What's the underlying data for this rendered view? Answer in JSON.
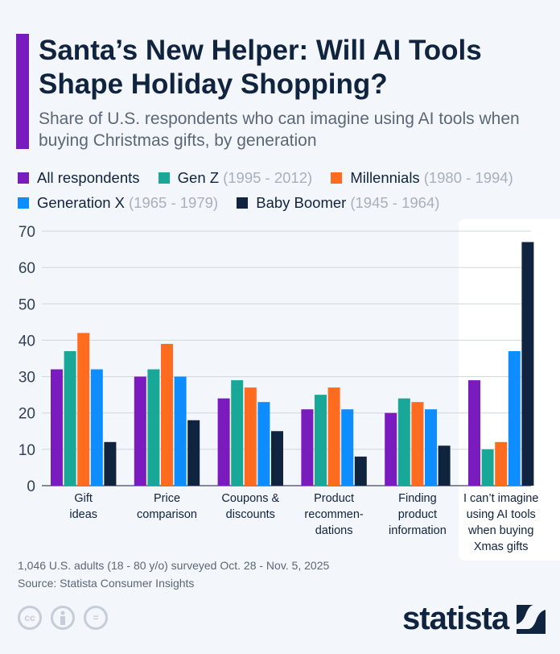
{
  "title": "Santa’s New Helper: Will AI Tools Shape Holiday Shopping?",
  "subtitle": "Share of U.S. respondents who can imagine using AI tools when buying Christmas gifts, by generation",
  "legend": [
    {
      "name": "All respondents",
      "years": "",
      "color": "#7a1cbd"
    },
    {
      "name": "Gen Z",
      "years": "(1995 - 2012)",
      "color": "#19a897"
    },
    {
      "name": "Millennials",
      "years": "(1980 - 1994)",
      "color": "#ff6b1f"
    },
    {
      "name": "Generation X",
      "years": "(1965 - 1979)",
      "color": "#0d8dff"
    },
    {
      "name": "Baby Boomer",
      "years": "(1945 - 1964)",
      "color": "#10243f"
    }
  ],
  "chart_data": {
    "type": "bar",
    "categories": [
      [
        "Gift",
        "ideas"
      ],
      [
        "Price",
        "comparison"
      ],
      [
        "Coupons &",
        "discounts"
      ],
      [
        "Product",
        "recommen-",
        "dations"
      ],
      [
        "Finding",
        "product",
        "information"
      ],
      [
        "I can’t imagine",
        "using AI tools",
        "when buying",
        "Xmas gifts"
      ]
    ],
    "series": [
      {
        "name": "All respondents",
        "values": [
          32,
          30,
          24,
          21,
          20,
          29
        ]
      },
      {
        "name": "Gen Z",
        "values": [
          37,
          32,
          29,
          25,
          24,
          10
        ]
      },
      {
        "name": "Millennials",
        "values": [
          42,
          39,
          27,
          27,
          23,
          12
        ]
      },
      {
        "name": "Generation X",
        "values": [
          32,
          30,
          23,
          21,
          21,
          37
        ]
      },
      {
        "name": "Baby Boomer",
        "values": [
          12,
          18,
          15,
          8,
          11,
          67
        ]
      }
    ],
    "ylim": [
      0,
      70
    ],
    "yticks": [
      "0",
      "10",
      "20",
      "30",
      "40",
      "50",
      "60",
      "70"
    ],
    "grid": true,
    "highlighted_category": 5
  },
  "footer": {
    "note": "1,046 U.S. adults (18 - 80 y/o) surveyed Oct. 28 - Nov. 5, 2025",
    "source": "Source: Statista Consumer Insights",
    "license_icons": [
      "cc-icon",
      "attribution-icon",
      "no-derivatives-icon"
    ],
    "cc_label": "cc",
    "nd_label": "=",
    "logo": "statista"
  }
}
